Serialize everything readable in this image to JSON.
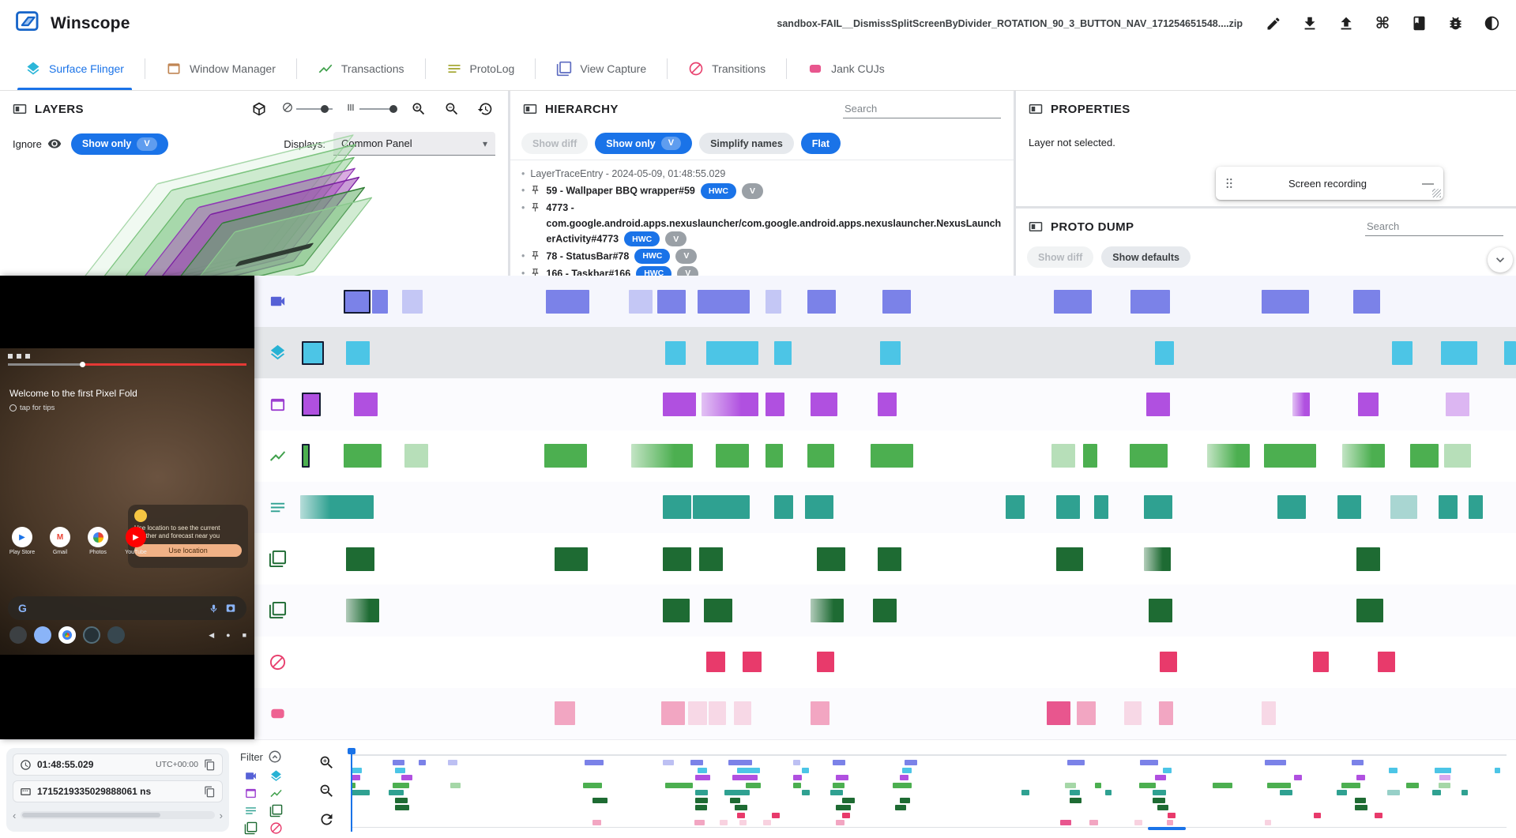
{
  "app": {
    "title": "Winscope",
    "file_name": "sandbox-FAIL__DismissSplitScreenByDivider_ROTATION_90_3_BUTTON_NAV_171254651548....zip"
  },
  "icons": {
    "command_glyph": "⌘",
    "caret_down": "▾",
    "minimize_glyph": "—",
    "chevron_left_glyph": "‹",
    "chevron_right_glyph": "›",
    "bullet_glyph": "•",
    "nav_back_glyph": "◀",
    "nav_home_glyph": "●",
    "nav_recents_glyph": "■"
  },
  "tabs": [
    {
      "label": "Surface Flinger",
      "icon": "layers",
      "color": "#2bb6d9",
      "active": true
    },
    {
      "label": "Window Manager",
      "icon": "window",
      "color": "#c08553",
      "active": false
    },
    {
      "label": "Transactions",
      "icon": "chart",
      "color": "#3fa04b",
      "active": false
    },
    {
      "label": "ProtoLog",
      "icon": "notes",
      "color": "#a0a32a",
      "active": false
    },
    {
      "label": "View Capture",
      "icon": "frames",
      "color": "#5c6bc0",
      "active": false
    },
    {
      "label": "Transitions",
      "icon": "block",
      "color": "#e8426f",
      "active": false
    },
    {
      "label": "Jank CUJs",
      "icon": "jank",
      "color": "#e8568e",
      "active": false
    }
  ],
  "layers_panel": {
    "title": "LAYERS",
    "ignore_label": "Ignore",
    "show_only_label": "Show only",
    "show_only_chip": "V",
    "displays_label": "Displays:",
    "displays_value": "Common Panel"
  },
  "hierarchy_panel": {
    "title": "HIERARCHY",
    "search_placeholder": "Search",
    "show_diff_label": "Show diff",
    "show_only_label": "Show only",
    "show_only_chip": "V",
    "simplify_names_label": "Simplify names",
    "flat_label": "Flat",
    "root_label": "LayerTraceEntry - 2024-05-09, 01:48:55.029",
    "nodes": [
      {
        "label": "59 - Wallpaper BBQ wrapper#59",
        "chips": [
          "HWC",
          "V"
        ]
      },
      {
        "label": "4773 - com.google.android.apps.nexuslauncher/com.google.android.apps.nexuslauncher.NexusLauncherActivity#4773",
        "chips": [
          "HWC",
          "V"
        ]
      },
      {
        "label": "78 - StatusBar#78",
        "chips": [
          "HWC",
          "V"
        ]
      },
      {
        "label": "166 - Taskbar#166",
        "chips": [
          "HWC",
          "V"
        ]
      }
    ]
  },
  "properties_panel": {
    "title": "PROPERTIES",
    "empty_message": "Layer not selected.",
    "screen_recording_title": "Screen recording"
  },
  "proto_dump_panel": {
    "title": "PROTO DUMP",
    "search_placeholder": "Search",
    "show_diff_label": "Show diff",
    "show_defaults_label": "Show defaults"
  },
  "screen_recording": {
    "welcome_title": "Welcome to the first Pixel Fold",
    "welcome_subtitle": "tap for tips",
    "notification_text": "Use location to see the current weather and forecast near you",
    "notification_button": "Use location",
    "app_labels": [
      "Play Store",
      "Gmail",
      "Photos",
      "YouTube"
    ]
  },
  "bottom_bar": {
    "human_time": "01:48:55.029",
    "timezone": "UTC+00:00",
    "raw_time": "1715219335029888061 ns",
    "filter_label": "Filter",
    "filter_icons": [
      {
        "icon": "videocam",
        "color": "#5661d6"
      },
      {
        "icon": "layers",
        "color": "#27b2d4"
      },
      {
        "icon": "window",
        "color": "#9c3fd0"
      },
      {
        "icon": "chart",
        "color": "#3fa04b"
      },
      {
        "icon": "notes",
        "color": "#2fa191"
      },
      {
        "icon": "frames",
        "color": "#1e6b33"
      },
      {
        "icon": "frames",
        "color": "#1e6b33"
      },
      {
        "icon": "block",
        "color": "#e83a6b"
      }
    ]
  },
  "timeline": {
    "rows": [
      {
        "key": "screen-recording",
        "icon": "videocam",
        "icon_color": "#5661d6",
        "color": "#7b82e8",
        "selected": false,
        "blocks": [
          [
            3.6,
            34,
            "o"
          ],
          [
            5.9,
            20,
            "s"
          ],
          [
            8.4,
            26,
            "l"
          ],
          [
            20.2,
            55,
            "s"
          ],
          [
            27.0,
            30,
            "l"
          ],
          [
            29.4,
            36,
            "s"
          ],
          [
            32.7,
            66,
            "s"
          ],
          [
            38.3,
            20,
            "l"
          ],
          [
            41.7,
            36,
            "s"
          ],
          [
            47.9,
            36,
            "s"
          ],
          [
            62.0,
            48,
            "s"
          ],
          [
            68.3,
            50,
            "s"
          ],
          [
            79.1,
            60,
            "s"
          ],
          [
            86.6,
            34,
            "s"
          ]
        ]
      },
      {
        "key": "surface-flinger",
        "icon": "layers",
        "icon_color": "#27b2d4",
        "color": "#4cc5e6",
        "selected": true,
        "blocks": [
          [
            0.1,
            28,
            "o"
          ],
          [
            3.8,
            30,
            "s"
          ],
          [
            30.0,
            26,
            "s"
          ],
          [
            33.4,
            66,
            "s"
          ],
          [
            39.0,
            22,
            "s"
          ],
          [
            47.7,
            26,
            "s"
          ],
          [
            70.3,
            24,
            "s"
          ],
          [
            89.8,
            26,
            "s"
          ],
          [
            93.8,
            46,
            "s"
          ],
          [
            99.0,
            15,
            "s"
          ]
        ]
      },
      {
        "key": "window-manager",
        "icon": "window",
        "icon_color": "#9c3fd0",
        "color": "#b050e0",
        "selected": false,
        "blocks": [
          [
            0.1,
            24,
            "o"
          ],
          [
            4.4,
            30,
            "s"
          ],
          [
            29.8,
            42,
            "s"
          ],
          [
            33.0,
            72,
            "g"
          ],
          [
            38.3,
            24,
            "s"
          ],
          [
            42.0,
            34,
            "s"
          ],
          [
            47.5,
            24,
            "s"
          ],
          [
            69.6,
            30,
            "s"
          ],
          [
            81.6,
            22,
            "g"
          ],
          [
            87.0,
            26,
            "s"
          ],
          [
            94.2,
            30,
            "l"
          ]
        ]
      },
      {
        "key": "transactions",
        "icon": "chart",
        "icon_color": "#3fa04b",
        "color": "#4caf50",
        "selected": false,
        "blocks": [
          [
            0.1,
            10,
            "o"
          ],
          [
            3.6,
            48,
            "s"
          ],
          [
            8.6,
            30,
            "l"
          ],
          [
            20.1,
            54,
            "s"
          ],
          [
            27.2,
            78,
            "g"
          ],
          [
            34.2,
            42,
            "s"
          ],
          [
            38.3,
            22,
            "s"
          ],
          [
            41.7,
            34,
            "s"
          ],
          [
            46.9,
            54,
            "s"
          ],
          [
            61.8,
            30,
            "l"
          ],
          [
            64.4,
            18,
            "s"
          ],
          [
            68.2,
            48,
            "s"
          ],
          [
            74.6,
            54,
            "g"
          ],
          [
            79.3,
            66,
            "s"
          ],
          [
            85.7,
            54,
            "g"
          ],
          [
            91.3,
            36,
            "s"
          ],
          [
            94.1,
            34,
            "l"
          ]
        ]
      },
      {
        "key": "protolog",
        "icon": "notes",
        "icon_color": "#2fa191",
        "color": "#2fa191",
        "selected": false,
        "blocks": [
          [
            0.0,
            54,
            "g"
          ],
          [
            3.3,
            42,
            "s"
          ],
          [
            29.8,
            36,
            "s"
          ],
          [
            32.3,
            72,
            "s"
          ],
          [
            39.0,
            24,
            "s"
          ],
          [
            41.5,
            36,
            "s"
          ],
          [
            58.0,
            24,
            "s"
          ],
          [
            62.2,
            30,
            "s"
          ],
          [
            65.3,
            18,
            "s"
          ],
          [
            69.4,
            36,
            "s"
          ],
          [
            80.4,
            36,
            "s"
          ],
          [
            85.3,
            30,
            "s"
          ],
          [
            89.7,
            34,
            "l"
          ],
          [
            93.6,
            24,
            "s"
          ],
          [
            96.1,
            18,
            "s"
          ]
        ]
      },
      {
        "key": "view-capture-1",
        "icon": "frames",
        "icon_color": "#1e6b33",
        "color": "#1e6b33",
        "selected": false,
        "blocks": [
          [
            3.8,
            36,
            "s"
          ],
          [
            20.9,
            42,
            "s"
          ],
          [
            29.8,
            36,
            "s"
          ],
          [
            32.8,
            30,
            "s"
          ],
          [
            42.5,
            36,
            "s"
          ],
          [
            47.5,
            30,
            "s"
          ],
          [
            62.2,
            34,
            "s"
          ],
          [
            69.4,
            34,
            "g"
          ],
          [
            86.9,
            30,
            "s"
          ]
        ]
      },
      {
        "key": "view-capture-2",
        "icon": "frames",
        "icon_color": "#1e6b33",
        "color": "#1e6b33",
        "selected": false,
        "blocks": [
          [
            3.8,
            42,
            "g"
          ],
          [
            29.8,
            34,
            "s"
          ],
          [
            33.2,
            36,
            "s"
          ],
          [
            42.0,
            42,
            "g"
          ],
          [
            47.1,
            30,
            "s"
          ],
          [
            69.8,
            30,
            "s"
          ],
          [
            86.9,
            34,
            "s"
          ]
        ]
      },
      {
        "key": "transitions",
        "icon": "block",
        "icon_color": "#e8416f",
        "color": "#e83a6b",
        "selected": false,
        "small": true,
        "blocks": [
          [
            33.4,
            24,
            "s"
          ],
          [
            36.4,
            24,
            "s"
          ],
          [
            42.5,
            22,
            "s"
          ],
          [
            70.7,
            22,
            "s"
          ],
          [
            83.3,
            20,
            "s"
          ],
          [
            88.6,
            22,
            "s"
          ]
        ]
      },
      {
        "key": "jank-cujs",
        "icon": "jank",
        "icon_color": "#ee6292",
        "color": "#f2a6c2",
        "dark": "#e8568e",
        "selected": false,
        "blocks": [
          [
            20.9,
            26,
            "s"
          ],
          [
            29.7,
            30,
            "s"
          ],
          [
            31.9,
            24,
            "l"
          ],
          [
            33.6,
            22,
            "l"
          ],
          [
            35.7,
            22,
            "l"
          ],
          [
            42.0,
            24,
            "s"
          ],
          [
            61.4,
            30,
            "d"
          ],
          [
            63.9,
            24,
            "s"
          ],
          [
            67.8,
            22,
            "l"
          ],
          [
            70.6,
            18,
            "s"
          ],
          [
            79.1,
            18,
            "l"
          ]
        ]
      }
    ]
  }
}
